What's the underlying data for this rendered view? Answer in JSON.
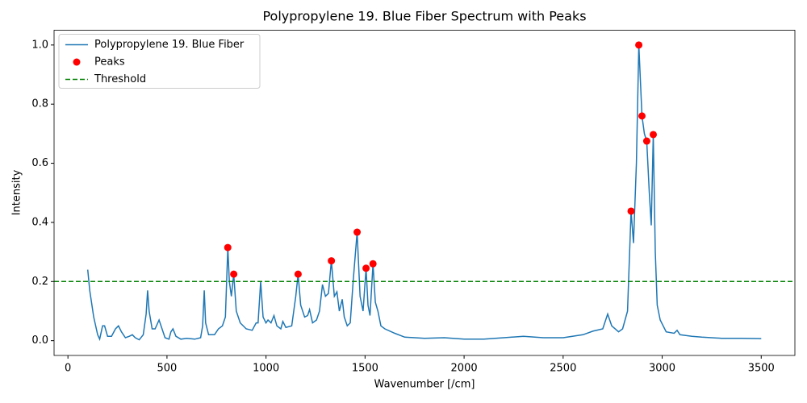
{
  "chart_data": {
    "type": "line",
    "title": "Polypropylene 19. Blue Fiber Spectrum with Peaks",
    "x_label": "Wavenumber [/cm]",
    "y_label": "Intensity",
    "xlim": [
      -70,
      3670
    ],
    "ylim": [
      -0.05,
      1.05
    ],
    "xticks": [
      0,
      500,
      1000,
      1500,
      2000,
      2500,
      3000,
      3500
    ],
    "yticks": [
      {
        "value": 0,
        "label": "0.0"
      },
      0.2,
      0.4,
      0.6,
      0.8,
      {
        "value": 1,
        "label": "1.0"
      }
    ],
    "legend": "upper left",
    "series": [
      {
        "name": "Polypropylene 19. Blue Fiber",
        "color": "#1f77b4",
        "type": "line",
        "x": [
          100,
          110,
          130,
          150,
          160,
          175,
          185,
          200,
          220,
          240,
          255,
          270,
          290,
          310,
          325,
          340,
          360,
          380,
          395,
          402,
          410,
          425,
          440,
          460,
          475,
          490,
          510,
          520,
          530,
          545,
          570,
          600,
          640,
          670,
          680,
          688,
          695,
          710,
          740,
          760,
          780,
          795,
          807,
          815,
          825,
          837,
          850,
          870,
          900,
          930,
          950,
          960,
          973,
          985,
          1000,
          1010,
          1025,
          1040,
          1055,
          1075,
          1085,
          1100,
          1130,
          1150,
          1162,
          1175,
          1195,
          1210,
          1220,
          1235,
          1255,
          1270,
          1285,
          1300,
          1315,
          1330,
          1345,
          1358,
          1370,
          1385,
          1395,
          1410,
          1425,
          1440,
          1460,
          1475,
          1490,
          1505,
          1515,
          1525,
          1540,
          1552,
          1565,
          1580,
          1600,
          1650,
          1700,
          1800,
          1900,
          2000,
          2100,
          2200,
          2300,
          2400,
          2500,
          2600,
          2650,
          2700,
          2725,
          2745,
          2780,
          2800,
          2825,
          2843,
          2855,
          2870,
          2882,
          2898,
          2910,
          2922,
          2935,
          2945,
          2955,
          2965,
          2975,
          2990,
          3020,
          3060,
          3075,
          3090,
          3150,
          3200,
          3300,
          3400,
          3500
        ],
        "values": [
          0.24,
          0.17,
          0.08,
          0.02,
          0.005,
          0.05,
          0.05,
          0.015,
          0.015,
          0.04,
          0.05,
          0.03,
          0.01,
          0.015,
          0.02,
          0.01,
          0.003,
          0.02,
          0.09,
          0.17,
          0.1,
          0.04,
          0.04,
          0.07,
          0.04,
          0.01,
          0.005,
          0.03,
          0.04,
          0.015,
          0.005,
          0.008,
          0.005,
          0.01,
          0.05,
          0.17,
          0.06,
          0.02,
          0.02,
          0.04,
          0.05,
          0.08,
          0.315,
          0.2,
          0.15,
          0.225,
          0.1,
          0.06,
          0.04,
          0.035,
          0.06,
          0.06,
          0.2,
          0.08,
          0.06,
          0.07,
          0.06,
          0.085,
          0.05,
          0.04,
          0.065,
          0.045,
          0.05,
          0.15,
          0.225,
          0.12,
          0.08,
          0.085,
          0.105,
          0.06,
          0.07,
          0.1,
          0.19,
          0.15,
          0.16,
          0.27,
          0.15,
          0.165,
          0.1,
          0.14,
          0.08,
          0.05,
          0.06,
          0.2,
          0.367,
          0.15,
          0.1,
          0.245,
          0.12,
          0.085,
          0.26,
          0.13,
          0.1,
          0.05,
          0.04,
          0.025,
          0.012,
          0.008,
          0.01,
          0.005,
          0.005,
          0.01,
          0.015,
          0.01,
          0.01,
          0.02,
          0.032,
          0.04,
          0.09,
          0.05,
          0.03,
          0.04,
          0.1,
          0.438,
          0.33,
          0.6,
          1.0,
          0.76,
          0.7,
          0.675,
          0.5,
          0.39,
          0.697,
          0.3,
          0.12,
          0.07,
          0.03,
          0.025,
          0.035,
          0.02,
          0.015,
          0.012,
          0.008,
          0.008,
          0.007
        ]
      },
      {
        "name": "Peaks",
        "color": "#ff0000",
        "type": "scatter",
        "x": [
          807,
          837,
          1162,
          1330,
          1460,
          1505,
          1540,
          2843,
          2882,
          2898,
          2922,
          2955
        ],
        "values": [
          0.315,
          0.225,
          0.225,
          0.27,
          0.367,
          0.245,
          0.26,
          0.438,
          1.0,
          0.76,
          0.675,
          0.697
        ]
      },
      {
        "name": "Threshold",
        "color": "#008000",
        "type": "hline",
        "values": [
          0.2
        ]
      }
    ]
  }
}
